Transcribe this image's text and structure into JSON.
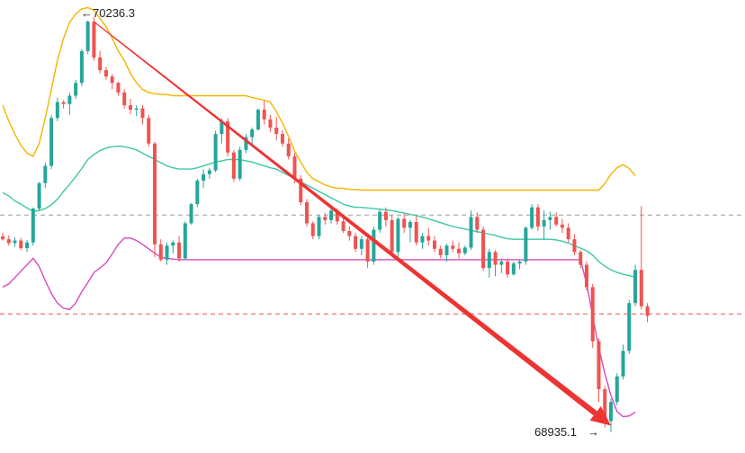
{
  "chart_data": {
    "type": "candlestick",
    "title": "",
    "xlabel": "",
    "ylabel": "",
    "ylim": [
      68870,
      70290
    ],
    "colors": {
      "up": "#26a69a",
      "down": "#ef5350",
      "bb_upper": "#f5b400",
      "bb_middle": "#3cc7a5",
      "bb_lower": "#d64bbe",
      "arrow": "#ee3333",
      "hline_red": "#ef5350",
      "hline_gray": "#9e9e9e"
    },
    "annotations": {
      "high_label": "70236.3",
      "low_label": "68935.1",
      "high_value": 70236.3,
      "low_value": 68935.1
    },
    "hlines": [
      {
        "value": 69616,
        "style": "dashed",
        "color": "gray"
      },
      {
        "value": 69306,
        "style": "dashed",
        "color": "red"
      }
    ],
    "vline_index": 130,
    "trend_arrow": {
      "from": {
        "index": 15,
        "value": 70222
      },
      "to": {
        "index": 100,
        "value": 68956
      }
    },
    "candles": [
      [
        69549,
        69560,
        69536,
        69540
      ],
      [
        69540,
        69552,
        69520,
        69528
      ],
      [
        69528,
        69546,
        69516,
        69536
      ],
      [
        69536,
        69544,
        69506,
        69512
      ],
      [
        69512,
        69538,
        69500,
        69530
      ],
      [
        69530,
        69640,
        69520,
        69636
      ],
      [
        69636,
        69720,
        69630,
        69716
      ],
      [
        69716,
        69780,
        69700,
        69770
      ],
      [
        69770,
        69930,
        69760,
        69920
      ],
      [
        69920,
        69984,
        69910,
        69970
      ],
      [
        69970,
        69976,
        69950,
        69964
      ],
      [
        69964,
        70000,
        69930,
        69990
      ],
      [
        69990,
        70040,
        69980,
        70030
      ],
      [
        70030,
        70136,
        70020,
        70130
      ],
      [
        70130,
        70226,
        70120,
        70222
      ],
      [
        70222,
        70236,
        70100,
        70110
      ],
      [
        70110,
        70130,
        70060,
        70070
      ],
      [
        70070,
        70080,
        70040,
        70050
      ],
      [
        70050,
        70058,
        70010,
        70030
      ],
      [
        70030,
        70034,
        69990,
        70000
      ],
      [
        70000,
        70010,
        69950,
        69960
      ],
      [
        69960,
        69980,
        69932,
        69946
      ],
      [
        69946,
        69960,
        69926,
        69950
      ],
      [
        69950,
        69960,
        69900,
        69920
      ],
      [
        69920,
        69930,
        69830,
        69840
      ],
      [
        69840,
        69846,
        69484,
        69524
      ],
      [
        69524,
        69540,
        69470,
        69476
      ],
      [
        69476,
        69530,
        69460,
        69520
      ],
      [
        69520,
        69536,
        69496,
        69530
      ],
      [
        69530,
        69550,
        69470,
        69480
      ],
      [
        69480,
        69596,
        69476,
        69590
      ],
      [
        69590,
        69654,
        69586,
        69650
      ],
      [
        69650,
        69730,
        69640,
        69724
      ],
      [
        69724,
        69760,
        69700,
        69744
      ],
      [
        69744,
        69764,
        69730,
        69756
      ],
      [
        69756,
        69880,
        69750,
        69870
      ],
      [
        69870,
        69920,
        69840,
        69910
      ],
      [
        69910,
        69920,
        69800,
        69812
      ],
      [
        69812,
        69820,
        69720,
        69730
      ],
      [
        69730,
        69830,
        69724,
        69820
      ],
      [
        69820,
        69870,
        69810,
        69860
      ],
      [
        69860,
        69890,
        69840,
        69884
      ],
      [
        69884,
        69950,
        69880,
        69946
      ],
      [
        69946,
        69974,
        69900,
        69916
      ],
      [
        69916,
        69930,
        69876,
        69890
      ],
      [
        69890,
        69924,
        69850,
        69870
      ],
      [
        69870,
        69882,
        69830,
        69840
      ],
      [
        69840,
        69856,
        69790,
        69800
      ],
      [
        69800,
        69810,
        69716,
        69730
      ],
      [
        69730,
        69740,
        69646,
        69656
      ],
      [
        69656,
        69666,
        69580,
        69590
      ],
      [
        69590,
        69596,
        69540,
        69550
      ],
      [
        69550,
        69616,
        69540,
        69610
      ],
      [
        69610,
        69622,
        69586,
        69600
      ],
      [
        69600,
        69640,
        69590,
        69630
      ],
      [
        69630,
        69636,
        69586,
        69596
      ],
      [
        69596,
        69606,
        69560,
        69566
      ],
      [
        69566,
        69580,
        69536,
        69550
      ],
      [
        69550,
        69560,
        69500,
        69510
      ],
      [
        69510,
        69550,
        69490,
        69540
      ],
      [
        69540,
        69554,
        69450,
        69470
      ],
      [
        69470,
        69580,
        69460,
        69570
      ],
      [
        69570,
        69636,
        69560,
        69626
      ],
      [
        69626,
        69640,
        69580,
        69600
      ],
      [
        69600,
        69616,
        69490,
        69500
      ],
      [
        69500,
        69610,
        69480,
        69604
      ],
      [
        69604,
        69620,
        69560,
        69576
      ],
      [
        69576,
        69600,
        69530,
        69594
      ],
      [
        69594,
        69612,
        69520,
        69530
      ],
      [
        69530,
        69560,
        69510,
        69550
      ],
      [
        69550,
        69576,
        69520,
        69536
      ],
      [
        69536,
        69550,
        69500,
        69510
      ],
      [
        69510,
        69520,
        69480,
        69490
      ],
      [
        69490,
        69526,
        69470,
        69520
      ],
      [
        69520,
        69536,
        69500,
        69510
      ],
      [
        69510,
        69530,
        69480,
        69496
      ],
      [
        69496,
        69520,
        69490,
        69514
      ],
      [
        69514,
        69630,
        69506,
        69610
      ],
      [
        69610,
        69624,
        69560,
        69570
      ],
      [
        69570,
        69580,
        69440,
        69450
      ],
      [
        69450,
        69510,
        69420,
        69500
      ],
      [
        69500,
        69506,
        69424,
        69460
      ],
      [
        69460,
        69480,
        69434,
        69470
      ],
      [
        69470,
        69480,
        69420,
        69430
      ],
      [
        69430,
        69470,
        69426,
        69464
      ],
      [
        69464,
        69476,
        69446,
        69470
      ],
      [
        69470,
        69580,
        69460,
        69576
      ],
      [
        69576,
        69650,
        69570,
        69640
      ],
      [
        69640,
        69650,
        69566,
        69580
      ],
      [
        69580,
        69630,
        69540,
        69600
      ],
      [
        69600,
        69626,
        69570,
        69610
      ],
      [
        69610,
        69624,
        69580,
        69586
      ],
      [
        69586,
        69604,
        69560,
        69576
      ],
      [
        69576,
        69590,
        69530,
        69540
      ],
      [
        69540,
        69556,
        69490,
        69500
      ],
      [
        69500,
        69506,
        69450,
        69460
      ],
      [
        69460,
        69470,
        69380,
        69390
      ],
      [
        69390,
        69400,
        69200,
        69220
      ],
      [
        69220,
        69230,
        69030,
        69070
      ],
      [
        69070,
        69080,
        68950,
        68970
      ],
      [
        68970,
        69040,
        68935,
        69030
      ],
      [
        69030,
        69120,
        69020,
        69110
      ],
      [
        69110,
        69210,
        69100,
        69190
      ],
      [
        69190,
        69350,
        69180,
        69340
      ],
      [
        69340,
        69460,
        69330,
        69444
      ],
      [
        69444,
        69644,
        69320,
        69330
      ],
      [
        69330,
        69340,
        69280,
        69300
      ]
    ],
    "bb_upper": [
      69960,
      69910,
      69870,
      69834,
      69810,
      69800,
      69840,
      69920,
      70010,
      70100,
      70170,
      70220,
      70246,
      70262,
      70266,
      70258,
      70232,
      70206,
      70170,
      70130,
      70100,
      70060,
      70030,
      70010,
      70000,
      69996,
      69994,
      69994,
      69990,
      69990,
      69990,
      69990,
      69990,
      69990,
      69990,
      69990,
      69990,
      69990,
      69990,
      69990,
      69990,
      69984,
      69980,
      69976,
      69970,
      69940,
      69904,
      69862,
      69816,
      69782,
      69750,
      69730,
      69720,
      69710,
      69704,
      69700,
      69700,
      69696,
      69696,
      69694,
      69694,
      69694,
      69694,
      69694,
      69694,
      69694,
      69694,
      69694,
      69694,
      69694,
      69694,
      69694,
      69694,
      69694,
      69694,
      69694,
      69694,
      69694,
      69694,
      69694,
      69694,
      69694,
      69694,
      69694,
      69694,
      69694,
      69694,
      69694,
      69694,
      69694,
      69694,
      69694,
      69694,
      69694,
      69694,
      69694,
      69694,
      69694,
      69694,
      69714,
      69744,
      69764,
      69774,
      69762,
      69740
    ],
    "bb_middle": [
      69686,
      69676,
      69660,
      69650,
      69638,
      69628,
      69630,
      69636,
      69648,
      69666,
      69690,
      69712,
      69736,
      69762,
      69790,
      69806,
      69818,
      69826,
      69830,
      69832,
      69830,
      69826,
      69820,
      69810,
      69800,
      69790,
      69780,
      69770,
      69764,
      69760,
      69760,
      69760,
      69764,
      69770,
      69776,
      69782,
      69786,
      69790,
      69790,
      69790,
      69786,
      69782,
      69776,
      69770,
      69764,
      69760,
      69750,
      69740,
      69730,
      69720,
      69710,
      69700,
      69690,
      69680,
      69670,
      69660,
      69650,
      69644,
      69640,
      69640,
      69638,
      69636,
      69634,
      69632,
      69630,
      69626,
      69622,
      69618,
      69614,
      69610,
      69604,
      69598,
      69592,
      69586,
      69580,
      69576,
      69572,
      69568,
      69564,
      69560,
      69556,
      69552,
      69546,
      69542,
      69540,
      69540,
      69540,
      69540,
      69540,
      69540,
      69540,
      69538,
      69534,
      69528,
      69520,
      69512,
      69504,
      69490,
      69470,
      69456,
      69444,
      69436,
      69430,
      69426,
      69422
    ],
    "bb_lower": [
      69390,
      69400,
      69420,
      69440,
      69460,
      69480,
      69454,
      69410,
      69370,
      69340,
      69324,
      69320,
      69340,
      69376,
      69404,
      69436,
      69450,
      69466,
      69494,
      69524,
      69544,
      69544,
      69536,
      69524,
      69510,
      69496,
      69484,
      69480,
      69478,
      69476,
      69476,
      69476,
      69476,
      69476,
      69476,
      69476,
      69476,
      69476,
      69476,
      69476,
      69476,
      69476,
      69476,
      69476,
      69476,
      69476,
      69476,
      69476,
      69476,
      69476,
      69476,
      69476,
      69476,
      69476,
      69476,
      69476,
      69476,
      69476,
      69476,
      69476,
      69476,
      69476,
      69476,
      69476,
      69476,
      69476,
      69476,
      69476,
      69476,
      69476,
      69476,
      69476,
      69476,
      69476,
      69476,
      69476,
      69476,
      69476,
      69476,
      69476,
      69476,
      69476,
      69476,
      69476,
      69476,
      69476,
      69476,
      69476,
      69476,
      69476,
      69476,
      69476,
      69476,
      69476,
      69476,
      69476,
      69400,
      69300,
      69200,
      69120,
      69050,
      69000,
      68984,
      68986,
      68998
    ]
  }
}
